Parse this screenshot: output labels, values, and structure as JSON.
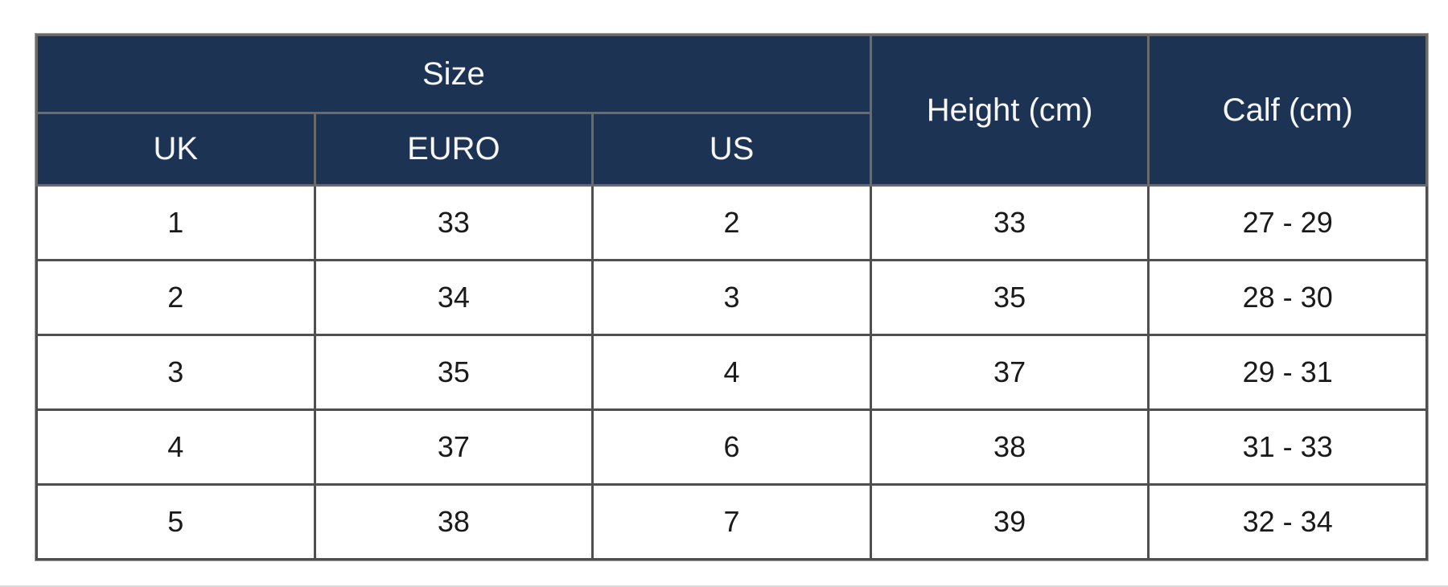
{
  "size_chart": {
    "header": {
      "size_group_label": "Size",
      "uk_label": "UK",
      "euro_label": "EURO",
      "us_label": "US",
      "height_label": "Height (cm)",
      "calf_label": "Calf (cm)"
    },
    "rows": [
      [
        "1",
        "33",
        "2",
        "33",
        "27 - 29"
      ],
      [
        "2",
        "34",
        "3",
        "35",
        "28 - 30"
      ],
      [
        "3",
        "35",
        "4",
        "37",
        "29 - 31"
      ],
      [
        "4",
        "37",
        "6",
        "38",
        "31 - 33"
      ],
      [
        "5",
        "38",
        "7",
        "39",
        "32 - 34"
      ]
    ]
  },
  "chart_data": {
    "type": "table",
    "title": "Size chart",
    "column_groups": [
      {
        "label": "Size",
        "columns": [
          "UK",
          "EURO",
          "US"
        ]
      },
      {
        "label": "Height (cm)",
        "columns": [
          "Height (cm)"
        ]
      },
      {
        "label": "Calf (cm)",
        "columns": [
          "Calf (cm)"
        ]
      }
    ],
    "columns": [
      "UK",
      "EURO",
      "US",
      "Height (cm)",
      "Calf (cm)"
    ],
    "rows": [
      {
        "uk": 1,
        "euro": 33,
        "us": 2,
        "height_cm": 33,
        "calf_cm": "27 - 29"
      },
      {
        "uk": 2,
        "euro": 34,
        "us": 3,
        "height_cm": 35,
        "calf_cm": "28 - 30"
      },
      {
        "uk": 3,
        "euro": 35,
        "us": 4,
        "height_cm": 37,
        "calf_cm": "29 - 31"
      },
      {
        "uk": 4,
        "euro": 37,
        "us": 6,
        "height_cm": 38,
        "calf_cm": "31 - 33"
      },
      {
        "uk": 5,
        "euro": 38,
        "us": 7,
        "height_cm": 39,
        "calf_cm": "32 - 34"
      }
    ],
    "layout": {
      "grid": true,
      "header_levels": 2
    }
  },
  "colors": {
    "header_bg": "#1d3354",
    "header_text": "#f7f7f7",
    "body_text": "#1a1a1a",
    "border_dark": "#4f4f4f",
    "border_light": "#9e9e9e",
    "page_bg": "#ffffff",
    "bottom_divider": "#dadada"
  }
}
